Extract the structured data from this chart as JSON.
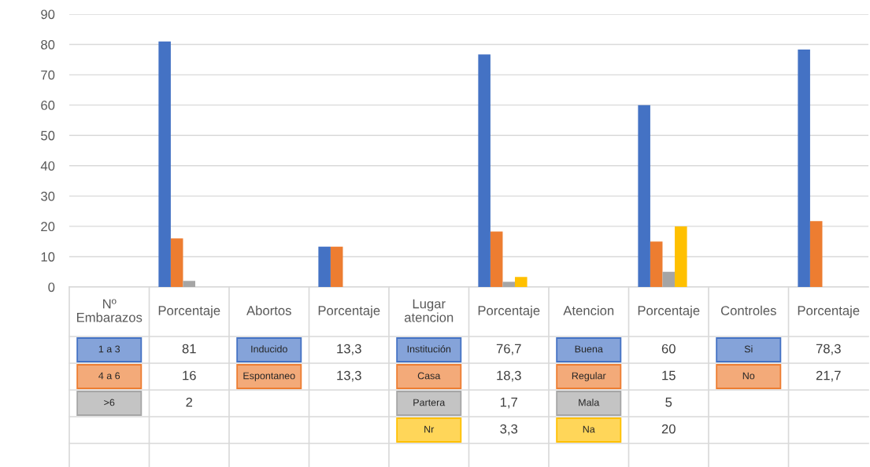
{
  "chart_data": {
    "type": "bar",
    "categories": [
      "Nº Embarazos",
      "Porcentaje",
      "Abortos",
      "Porcentaje",
      "Lugar atencion",
      "Porcentaje",
      "Atencion",
      "Porcentaje",
      "Controles",
      "Porcentaje"
    ],
    "series": [
      {
        "color": "#4472c4",
        "values": [
          null,
          81,
          null,
          13.3,
          null,
          76.7,
          null,
          60,
          null,
          78.3
        ],
        "value_labels": [
          "1 a 3",
          "81",
          "Inducido",
          "13,3",
          "Institución",
          "76,7",
          "Buena",
          "60",
          "Si",
          "78,3"
        ]
      },
      {
        "color": "#ed7d31",
        "values": [
          null,
          16,
          null,
          13.3,
          null,
          18.3,
          null,
          15,
          null,
          21.7
        ],
        "value_labels": [
          "4 a 6",
          "16",
          "Espontaneo",
          "13,3",
          "Casa",
          "18,3",
          "Regular",
          "15",
          "No",
          "21,7"
        ]
      },
      {
        "color": "#a5a5a5",
        "values": [
          null,
          2,
          null,
          null,
          null,
          1.7,
          null,
          5,
          null,
          null
        ],
        "value_labels": [
          ">6",
          "2",
          null,
          null,
          "Partera",
          "1,7",
          "Mala",
          "5",
          null,
          null
        ]
      },
      {
        "color": "#ffc000",
        "values": [
          null,
          null,
          null,
          null,
          null,
          3.3,
          null,
          20,
          null,
          null
        ],
        "value_labels": [
          null,
          null,
          null,
          null,
          "Nr",
          "3,3",
          "Na",
          "20",
          null,
          null
        ]
      }
    ],
    "ylim": [
      0,
      90
    ],
    "yticks": [
      0,
      10,
      20,
      30,
      40,
      50,
      60,
      70,
      80,
      90
    ],
    "grid": "y"
  }
}
